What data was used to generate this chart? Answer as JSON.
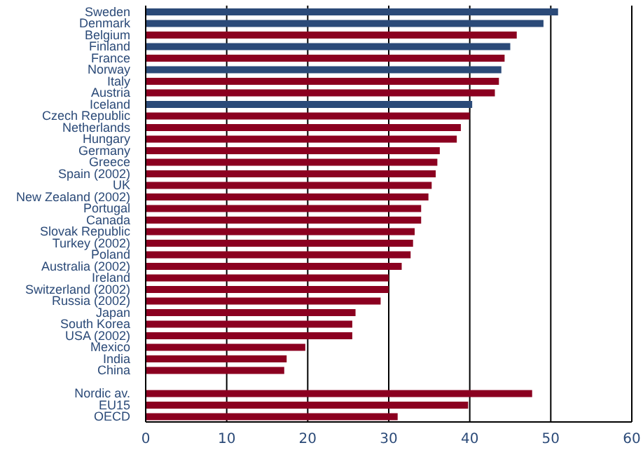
{
  "chart_data": {
    "type": "bar",
    "orientation": "horizontal",
    "categories": [
      "Sweden",
      "Denmark",
      "Belgium",
      "Finland",
      "France",
      "Norway",
      "Italy",
      "Austria",
      "Iceland",
      "Czech Republic",
      "Netherlands",
      "Hungary",
      "Germany",
      "Greece",
      "Spain (2002)",
      "UK",
      "New Zealand (2002)",
      "Portugal",
      "Canada",
      "Slovak Republic",
      "Turkey (2002)",
      "Poland",
      "Australia (2002)",
      "Ireland",
      "Switzerland (2002)",
      "Russia (2002)",
      "Japan",
      "South Korea",
      "USA (2002)",
      "Mexico",
      "India",
      "China",
      null,
      "Nordic av.",
      "EU15",
      "OECD"
    ],
    "values": [
      50.9,
      49.1,
      45.8,
      45.0,
      44.3,
      43.9,
      43.6,
      43.1,
      40.3,
      40.0,
      38.9,
      38.4,
      36.3,
      36.0,
      35.8,
      35.3,
      34.9,
      34.0,
      34.0,
      33.2,
      33.0,
      32.7,
      31.6,
      30.0,
      30.0,
      29.0,
      25.9,
      25.5,
      25.5,
      19.7,
      17.4,
      17.1,
      null,
      47.7,
      39.8,
      31.1
    ],
    "colors": [
      "#2b4a78",
      "#2b4a78",
      "#8b0020",
      "#2b4a78",
      "#8b0020",
      "#2b4a78",
      "#8b0020",
      "#8b0020",
      "#2b4a78",
      "#8b0020",
      "#8b0020",
      "#8b0020",
      "#8b0020",
      "#8b0020",
      "#8b0020",
      "#8b0020",
      "#8b0020",
      "#8b0020",
      "#8b0020",
      "#8b0020",
      "#8b0020",
      "#8b0020",
      "#8b0020",
      "#8b0020",
      "#8b0020",
      "#8b0020",
      "#8b0020",
      "#8b0020",
      "#8b0020",
      "#8b0020",
      "#8b0020",
      "#8b0020",
      "#8b0020",
      "#8b0020",
      "#8b0020",
      "#8b0020"
    ],
    "xlim": [
      0,
      60
    ],
    "xticks": [
      0,
      10,
      20,
      30,
      40,
      50,
      60
    ],
    "grid": "x"
  }
}
